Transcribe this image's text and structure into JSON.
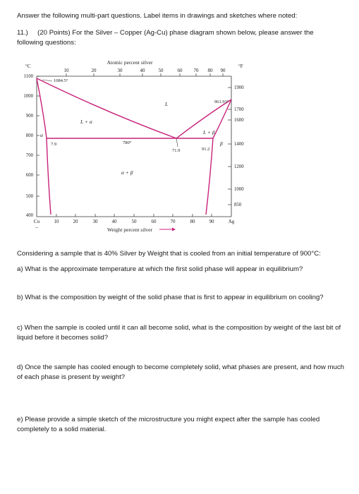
{
  "intro": "Answer the following multi-part questions.  Label items in drawings and sketches where noted:",
  "question": {
    "number": "11.)",
    "points": "(20 Points)",
    "text_line1": "For the Silver – Copper (Ag-Cu) phase diagram shown below, please answer the",
    "text_line2": "following questions:"
  },
  "diagram": {
    "top_axis_label": "Atomic percent silver",
    "bottom_axis_label": "Weight percent silver",
    "left_unit": "°C",
    "right_unit": "°F",
    "top_ticks": [
      "10",
      "20",
      "30",
      "40",
      "50",
      "60",
      "70",
      "80",
      "90"
    ],
    "bottom_ticks": [
      "10",
      "20",
      "30",
      "40",
      "50",
      "60",
      "70",
      "80",
      "90"
    ],
    "bottom_left_label": "Cu",
    "bottom_right_label": "Ag",
    "bottom_left_sub": "--",
    "celsius_ticks": [
      "1100",
      "1000",
      "900",
      "800",
      "700",
      "600",
      "500",
      "400"
    ],
    "fahrenheit_ticks": [
      "1900",
      "1700",
      "1600",
      "1400",
      "1200",
      "1000",
      "850"
    ],
    "labels": {
      "cu_melting": "1084.5°",
      "ag_melting": "961.93°",
      "eutectic_temp": "780°",
      "eutectic_comp": "71.9",
      "beta_limit": "91.2",
      "alpha_limit": "7.9",
      "liquid": "L",
      "l_alpha": "L + α",
      "l_beta": "L + β",
      "alpha": "α",
      "beta": "β",
      "alpha_beta": "α + β"
    },
    "colors": {
      "curve": "#c8217a",
      "axis": "#333333"
    }
  },
  "prompt": "Considering a sample that is 40% Silver by Weight that is cooled from an initial temperature of 900°C:",
  "parts": {
    "a": "a) What is the approximate temperature at which the first solid phase will appear in equilibrium?",
    "b": "b) What is the composition by weight of the solid phase that is first to appear in equilibrium on cooling?",
    "c": "c) When the sample is cooled until it can all become solid, what is the composition by weight of the last bit of liquid before it becomes solid?",
    "d": "d) Once the sample has cooled enough to become completely solid, what phases are present, and how much of each phase is present by weight?",
    "e": "e) Please provide a simple sketch of the microstructure you might expect after the sample has cooled completely to a solid material."
  }
}
